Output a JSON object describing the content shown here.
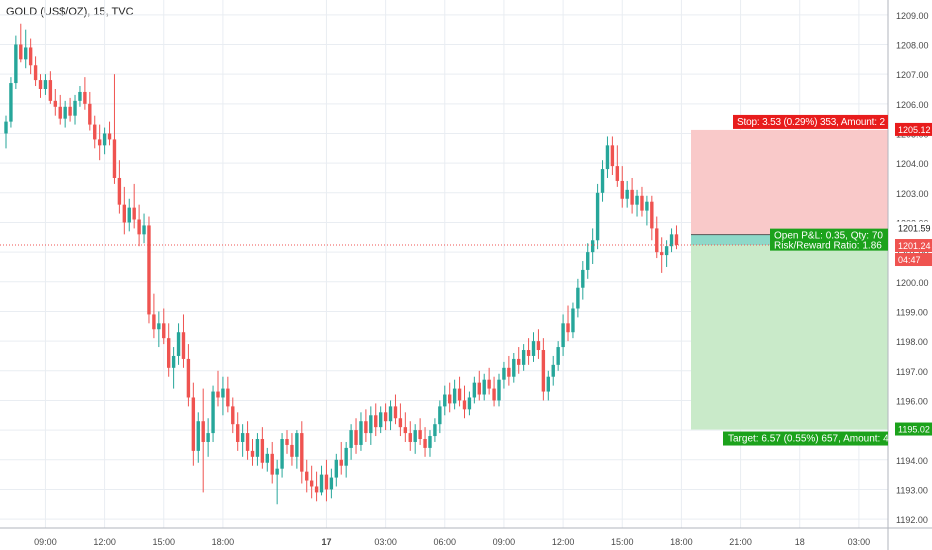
{
  "header": {
    "title": "GOLD (US$/OZ), 15, TVC"
  },
  "colors": {
    "up": "#26a69a",
    "down": "#ef5350",
    "grid": "#e9edf2",
    "axis_border": "#b2b5be",
    "stop_zone": "#f9c9c9",
    "target_zone": "#c9eac9",
    "stop_label_bg": "#e81c1c",
    "target_label_bg": "#1ca21c",
    "price_line": "#ef5350",
    "entry_label_bg": "#26a69a"
  },
  "chart_data": {
    "type": "candlestick",
    "symbol": "GOLD (US$/OZ)",
    "interval": "15",
    "source": "TVC",
    "ylim": [
      1191.7,
      1209.5
    ],
    "y_ticks": [
      1192.0,
      1193.0,
      1194.0,
      1195.0,
      1196.0,
      1197.0,
      1198.0,
      1199.0,
      1200.0,
      1201.0,
      1202.0,
      1203.0,
      1204.0,
      1205.0,
      1206.0,
      1207.0,
      1208.0,
      1209.0
    ],
    "x_ticks": [
      {
        "label": "09:00",
        "index": 8
      },
      {
        "label": "12:00",
        "index": 20
      },
      {
        "label": "15:00",
        "index": 32
      },
      {
        "label": "18:00",
        "index": 44
      },
      {
        "label": "17",
        "index": 65,
        "bold": true
      },
      {
        "label": "03:00",
        "index": 77
      },
      {
        "label": "06:00",
        "index": 89
      },
      {
        "label": "09:00",
        "index": 101
      },
      {
        "label": "12:00",
        "index": 113
      },
      {
        "label": "15:00",
        "index": 125
      },
      {
        "label": "18:00",
        "index": 137
      },
      {
        "label": "21:00",
        "index": 149
      },
      {
        "label": "18",
        "index": 161
      },
      {
        "label": "03:00",
        "index": 173
      }
    ],
    "candles": [
      [
        1205.0,
        1205.6,
        1204.5,
        1205.4
      ],
      [
        1205.4,
        1206.9,
        1205.2,
        1206.7
      ],
      [
        1206.7,
        1208.3,
        1206.5,
        1208.0
      ],
      [
        1208.0,
        1208.7,
        1207.4,
        1207.5
      ],
      [
        1207.5,
        1208.5,
        1207.2,
        1207.9
      ],
      [
        1207.9,
        1208.2,
        1207.0,
        1207.3
      ],
      [
        1207.3,
        1207.6,
        1206.6,
        1206.8
      ],
      [
        1206.8,
        1207.0,
        1206.2,
        1206.5
      ],
      [
        1206.5,
        1207.0,
        1206.3,
        1206.8
      ],
      [
        1206.8,
        1207.1,
        1206.0,
        1206.1
      ],
      [
        1206.1,
        1206.5,
        1205.6,
        1205.9
      ],
      [
        1205.9,
        1206.3,
        1205.3,
        1205.5
      ],
      [
        1205.5,
        1206.1,
        1205.2,
        1205.9
      ],
      [
        1205.9,
        1206.2,
        1205.4,
        1205.6
      ],
      [
        1205.6,
        1206.3,
        1205.3,
        1206.1
      ],
      [
        1206.1,
        1206.6,
        1205.9,
        1206.4
      ],
      [
        1206.4,
        1206.9,
        1205.8,
        1206.0
      ],
      [
        1206.0,
        1206.4,
        1205.1,
        1205.3
      ],
      [
        1205.3,
        1205.6,
        1204.5,
        1204.8
      ],
      [
        1204.8,
        1205.3,
        1204.1,
        1204.6
      ],
      [
        1204.6,
        1205.2,
        1204.3,
        1205.0
      ],
      [
        1205.0,
        1205.4,
        1204.6,
        1204.8
      ],
      [
        1204.8,
        1207.0,
        1203.3,
        1203.5
      ],
      [
        1203.5,
        1204.1,
        1202.3,
        1202.6
      ],
      [
        1202.6,
        1203.2,
        1201.6,
        1202.0
      ],
      [
        1202.0,
        1202.8,
        1201.7,
        1202.5
      ],
      [
        1202.5,
        1203.3,
        1201.8,
        1202.1
      ],
      [
        1202.1,
        1202.6,
        1201.2,
        1201.6
      ],
      [
        1201.6,
        1202.3,
        1201.3,
        1201.9
      ],
      [
        1201.9,
        1202.2,
        1198.6,
        1198.9
      ],
      [
        1198.9,
        1199.6,
        1198.1,
        1198.4
      ],
      [
        1198.4,
        1199.0,
        1197.8,
        1198.6
      ],
      [
        1198.6,
        1199.1,
        1197.9,
        1198.1
      ],
      [
        1198.1,
        1198.6,
        1196.8,
        1197.1
      ],
      [
        1197.1,
        1197.8,
        1196.4,
        1197.5
      ],
      [
        1197.5,
        1198.6,
        1197.2,
        1198.3
      ],
      [
        1198.3,
        1198.9,
        1197.1,
        1197.4
      ],
      [
        1197.4,
        1197.9,
        1195.8,
        1196.1
      ],
      [
        1196.1,
        1196.6,
        1193.8,
        1194.3
      ],
      [
        1194.3,
        1195.6,
        1193.9,
        1195.3
      ],
      [
        1195.3,
        1196.4,
        1192.9,
        1194.6
      ],
      [
        1194.6,
        1195.4,
        1194.1,
        1194.9
      ],
      [
        1194.9,
        1196.5,
        1194.6,
        1196.3
      ],
      [
        1196.3,
        1197.0,
        1195.8,
        1196.1
      ],
      [
        1196.1,
        1196.8,
        1195.5,
        1196.4
      ],
      [
        1196.4,
        1196.8,
        1195.6,
        1195.8
      ],
      [
        1195.8,
        1196.1,
        1194.9,
        1195.2
      ],
      [
        1195.2,
        1195.6,
        1194.3,
        1194.6
      ],
      [
        1194.6,
        1195.2,
        1194.1,
        1194.9
      ],
      [
        1194.9,
        1195.3,
        1194.0,
        1194.3
      ],
      [
        1194.3,
        1194.7,
        1193.8,
        1194.1
      ],
      [
        1194.1,
        1194.9,
        1193.8,
        1194.7
      ],
      [
        1194.7,
        1195.1,
        1193.7,
        1193.9
      ],
      [
        1193.9,
        1194.4,
        1193.6,
        1194.2
      ],
      [
        1194.2,
        1194.6,
        1193.2,
        1193.5
      ],
      [
        1193.5,
        1194.0,
        1192.5,
        1193.7
      ],
      [
        1193.7,
        1194.9,
        1193.4,
        1194.7
      ],
      [
        1194.7,
        1195.0,
        1194.2,
        1194.5
      ],
      [
        1194.5,
        1194.9,
        1193.8,
        1194.1
      ],
      [
        1194.1,
        1195.0,
        1193.7,
        1194.9
      ],
      [
        1194.9,
        1195.3,
        1193.2,
        1193.6
      ],
      [
        1193.6,
        1194.0,
        1192.9,
        1193.3
      ],
      [
        1193.3,
        1193.8,
        1192.7,
        1193.1
      ],
      [
        1193.1,
        1193.6,
        1192.6,
        1192.9
      ],
      [
        1192.9,
        1193.8,
        1192.8,
        1193.5
      ],
      [
        1193.5,
        1194.0,
        1192.6,
        1193.0
      ],
      [
        1193.0,
        1193.7,
        1192.7,
        1193.4
      ],
      [
        1193.4,
        1194.2,
        1193.1,
        1194.0
      ],
      [
        1194.0,
        1194.6,
        1193.5,
        1193.8
      ],
      [
        1193.8,
        1194.6,
        1193.4,
        1194.4
      ],
      [
        1194.4,
        1195.2,
        1194.0,
        1195.0
      ],
      [
        1195.0,
        1195.4,
        1194.2,
        1194.5
      ],
      [
        1194.5,
        1195.6,
        1194.3,
        1195.3
      ],
      [
        1195.3,
        1195.7,
        1194.6,
        1194.9
      ],
      [
        1194.9,
        1195.8,
        1194.5,
        1195.5
      ],
      [
        1195.5,
        1195.9,
        1194.8,
        1195.1
      ],
      [
        1195.1,
        1195.8,
        1194.9,
        1195.6
      ],
      [
        1195.6,
        1195.9,
        1195.0,
        1195.3
      ],
      [
        1195.3,
        1196.0,
        1195.0,
        1195.8
      ],
      [
        1195.8,
        1196.2,
        1195.2,
        1195.4
      ],
      [
        1195.4,
        1195.9,
        1194.8,
        1195.1
      ],
      [
        1195.1,
        1195.6,
        1194.6,
        1194.9
      ],
      [
        1194.9,
        1195.3,
        1194.3,
        1194.6
      ],
      [
        1194.6,
        1195.2,
        1194.2,
        1195.0
      ],
      [
        1195.0,
        1195.4,
        1194.5,
        1194.7
      ],
      [
        1194.7,
        1195.1,
        1194.1,
        1194.4
      ],
      [
        1194.4,
        1195.0,
        1194.1,
        1194.8
      ],
      [
        1194.8,
        1195.4,
        1194.6,
        1195.2
      ],
      [
        1195.2,
        1196.0,
        1194.9,
        1195.8
      ],
      [
        1195.8,
        1196.5,
        1195.5,
        1196.2
      ],
      [
        1196.2,
        1196.6,
        1195.6,
        1195.9
      ],
      [
        1195.9,
        1196.7,
        1195.7,
        1196.4
      ],
      [
        1196.4,
        1196.8,
        1195.8,
        1196.0
      ],
      [
        1196.0,
        1196.5,
        1195.4,
        1195.7
      ],
      [
        1195.7,
        1196.3,
        1195.5,
        1196.1
      ],
      [
        1196.1,
        1196.8,
        1195.9,
        1196.6
      ],
      [
        1196.6,
        1197.0,
        1196.0,
        1196.2
      ],
      [
        1196.2,
        1196.9,
        1196.0,
        1196.7
      ],
      [
        1196.7,
        1197.1,
        1196.2,
        1196.4
      ],
      [
        1196.4,
        1196.8,
        1195.8,
        1196.0
      ],
      [
        1196.0,
        1196.9,
        1195.8,
        1196.7
      ],
      [
        1196.7,
        1197.3,
        1196.4,
        1197.1
      ],
      [
        1197.1,
        1197.5,
        1196.5,
        1196.8
      ],
      [
        1196.8,
        1197.6,
        1196.6,
        1197.4
      ],
      [
        1197.4,
        1197.8,
        1196.9,
        1197.2
      ],
      [
        1197.2,
        1197.9,
        1197.0,
        1197.7
      ],
      [
        1197.7,
        1198.1,
        1197.2,
        1197.5
      ],
      [
        1197.5,
        1198.3,
        1197.3,
        1198.0
      ],
      [
        1198.0,
        1198.4,
        1197.4,
        1197.7
      ],
      [
        1197.7,
        1198.1,
        1196.0,
        1196.3
      ],
      [
        1196.3,
        1197.0,
        1196.0,
        1196.8
      ],
      [
        1196.8,
        1197.5,
        1196.5,
        1197.2
      ],
      [
        1197.2,
        1198.0,
        1197.0,
        1197.8
      ],
      [
        1197.8,
        1198.9,
        1197.5,
        1198.6
      ],
      [
        1198.6,
        1199.2,
        1198.0,
        1198.3
      ],
      [
        1198.3,
        1199.3,
        1198.1,
        1199.1
      ],
      [
        1199.1,
        1200.1,
        1198.8,
        1199.8
      ],
      [
        1199.8,
        1200.7,
        1199.4,
        1200.4
      ],
      [
        1200.4,
        1201.3,
        1200.1,
        1201.0
      ],
      [
        1201.0,
        1201.8,
        1200.6,
        1201.4
      ],
      [
        1201.4,
        1203.3,
        1201.1,
        1203.0
      ],
      [
        1203.0,
        1204.1,
        1202.7,
        1203.8
      ],
      [
        1203.8,
        1204.9,
        1203.5,
        1204.6
      ],
      [
        1204.6,
        1204.9,
        1203.6,
        1203.9
      ],
      [
        1203.9,
        1204.6,
        1203.2,
        1203.4
      ],
      [
        1203.4,
        1203.9,
        1202.5,
        1202.8
      ],
      [
        1202.8,
        1203.4,
        1202.5,
        1203.1
      ],
      [
        1203.1,
        1203.5,
        1202.3,
        1202.6
      ],
      [
        1202.6,
        1203.1,
        1202.2,
        1202.9
      ],
      [
        1202.9,
        1203.2,
        1202.2,
        1202.4
      ],
      [
        1202.4,
        1202.9,
        1201.9,
        1202.7
      ],
      [
        1202.7,
        1202.9,
        1201.4,
        1201.8
      ],
      [
        1201.8,
        1202.2,
        1200.8,
        1201.0
      ],
      [
        1201.0,
        1201.5,
        1200.3,
        1200.9
      ],
      [
        1200.9,
        1201.4,
        1200.5,
        1201.2
      ],
      [
        1201.2,
        1201.8,
        1201.0,
        1201.6
      ],
      [
        1201.6,
        1201.9,
        1201.1,
        1201.24
      ]
    ],
    "position": {
      "entry": 1201.59,
      "stop": 1205.12,
      "target": 1195.02,
      "last_price": 1201.24
    }
  },
  "labels": {
    "stop": "Stop: 3.53 (0.29%) 353, Amount: 2",
    "target": "Target: 6.57 (0.55%) 657, Amount: 4",
    "open_pl": "Open P&L: 0.35, Qty: 70",
    "risk_reward": "Risk/Reward Ratio: 1.86",
    "entry_price": "1201.59",
    "last_price": "1201.24",
    "countdown": "04:47",
    "stop_price": "1205.12",
    "target_price": "1195.02"
  }
}
